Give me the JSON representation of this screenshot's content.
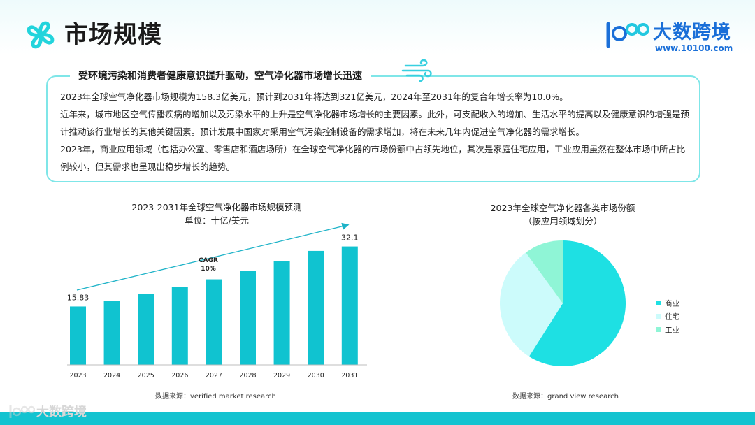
{
  "header": {
    "title": "市场规模",
    "brand_name": "大数跨境",
    "brand_url": "www.10100.com",
    "logo_text": "100"
  },
  "summary": {
    "heading": "受环境污染和消费者健康意识提升驱动，空气净化器市场增长迅速",
    "paragraphs": [
      "2023年全球空气净化器市场规模为158.3亿美元，预计到2031年将达到321亿美元，2024年至2031年的复合年增长率为10.0%。",
      "近年来，城市地区空气传播疾病的增加以及污染水平的上升是空气净化器市场增长的主要因素。此外，可支配收入的增加、生活水平的提高以及健康意识的增强是预计推动该行业增长的其他关键因素。预计发展中国家对采用空气污染控制设备的需求增加，将在未来几年内促进空气净化器的需求增长。",
      "2023年，商业应用领域（包括办公室、零售店和酒店场所）在全球空气净化器的市场份额中占领先地位，其次是家庭住宅应用，工业应用虽然在整体市场中所占比例较小，但其需求也呈现出稳步增长的趋势。"
    ]
  },
  "chart_data": [
    {
      "type": "bar",
      "title": "2023-2031年全球空气净化器市场规模预测",
      "subtitle": "单位：十亿/美元",
      "categories": [
        "2023",
        "2024",
        "2025",
        "2026",
        "2027",
        "2028",
        "2029",
        "2030",
        "2031"
      ],
      "values": [
        15.83,
        17.4,
        19.2,
        21.1,
        23.2,
        25.5,
        28.1,
        30.9,
        32.1
      ],
      "data_labels": [
        {
          "category": "2023",
          "text": "15.83"
        },
        {
          "category": "2031",
          "text": "32.1"
        }
      ],
      "annotation": {
        "line1": "CAGR",
        "line2": "10%"
      },
      "ylim": [
        0,
        36
      ],
      "grid": false,
      "color": "#10c3d0",
      "source": "数据来源：verified market research"
    },
    {
      "type": "pie",
      "title": "2023年全球空气净化器各类市场份额",
      "subtitle": "（按应用领域划分）",
      "slices": [
        {
          "label": "商业",
          "value": 59,
          "color": "#1ee0e3"
        },
        {
          "label": "住宅",
          "value": 31,
          "color": "#ccfbfb"
        },
        {
          "label": "工业",
          "value": 10,
          "color": "#8ff5d6"
        }
      ],
      "legend": "right",
      "source": "数据来源：grand view research"
    }
  ],
  "watermark": {
    "text": "大数跨境"
  }
}
